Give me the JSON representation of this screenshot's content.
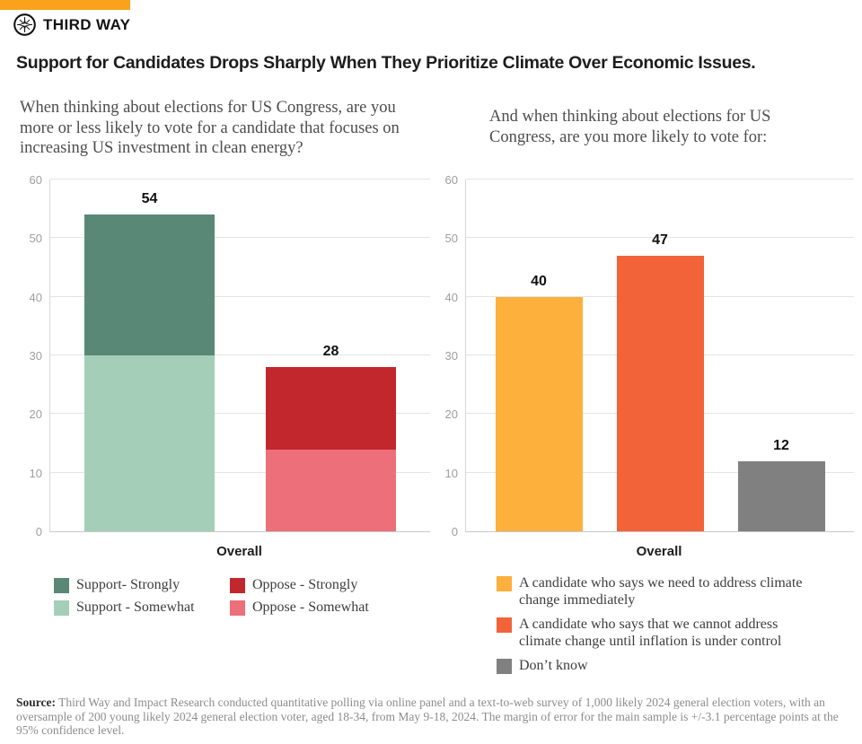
{
  "brand": {
    "name": "THIRD WAY",
    "icon": "compass-star-icon",
    "accent_color": "#FAA21B"
  },
  "title": "Support for Candidates Drops Sharply When They Prioritize Climate Over Economic Issues.",
  "left_panel": {
    "question": "When thinking about elections for US Congress, are you more or less likely to vote for a candidate that focuses on increasing US investment in clean energy?",
    "x_category": "Overall",
    "legend": [
      {
        "label": "Support- Strongly",
        "color": "#598876"
      },
      {
        "label": "Support - Somewhat",
        "color": "#A5CEB8"
      },
      {
        "label": "Oppose - Strongly",
        "color": "#C2272D"
      },
      {
        "label": "Oppose - Somewhat",
        "color": "#EC6F79"
      }
    ]
  },
  "right_panel": {
    "question": "And when thinking about elections for US Congress, are you more likely to vote for:",
    "x_category": "Overall",
    "legend": [
      {
        "label": "A candidate who says we need to address climate change immediately",
        "color": "#FDB03C"
      },
      {
        "label": "A candidate who says that we cannot address climate change until inflation is under control",
        "color": "#F2633A"
      },
      {
        "label": "Don’t know",
        "color": "#808080"
      }
    ]
  },
  "chart_data": [
    {
      "type": "bar",
      "stacked": true,
      "categories": [
        "Overall"
      ],
      "ylim": [
        0,
        60
      ],
      "yticks": [
        0,
        10,
        20,
        30,
        40,
        50,
        60
      ],
      "grid": true,
      "legend_position": "bottom",
      "bars": [
        {
          "group": "Support",
          "total": 54,
          "segments": [
            {
              "name": "Support - Somewhat",
              "value": 30,
              "color": "#A5CEB8"
            },
            {
              "name": "Support- Strongly",
              "value": 24,
              "color": "#598876"
            }
          ]
        },
        {
          "group": "Oppose",
          "total": 28,
          "segments": [
            {
              "name": "Oppose - Somewhat",
              "value": 14,
              "color": "#EC6F79"
            },
            {
              "name": "Oppose - Strongly",
              "value": 14,
              "color": "#C2272D"
            }
          ]
        }
      ]
    },
    {
      "type": "bar",
      "stacked": false,
      "categories": [
        "Overall"
      ],
      "ylim": [
        0,
        60
      ],
      "yticks": [
        0,
        10,
        20,
        30,
        40,
        50,
        60
      ],
      "grid": true,
      "legend_position": "bottom",
      "bars": [
        {
          "name": "A candidate who says we need to address climate change immediately",
          "value": 40,
          "color": "#FDB03C"
        },
        {
          "name": "A candidate who says that we cannot address climate change until inflation is under control",
          "value": 47,
          "color": "#F2633A"
        },
        {
          "name": "Don’t know",
          "value": 12,
          "color": "#808080"
        }
      ]
    }
  ],
  "source": {
    "label": "Source:",
    "text": " Third Way and Impact Research conducted quantitative polling via online panel and a text-to-web survey of 1,000 likely 2024 general election voters, with an oversample of 200 young likely 2024 general election voter, aged 18-34, from May 9-18, 2024. The margin of error for the main sample is +/-3.1 percentage points at the 95% confidence level."
  }
}
